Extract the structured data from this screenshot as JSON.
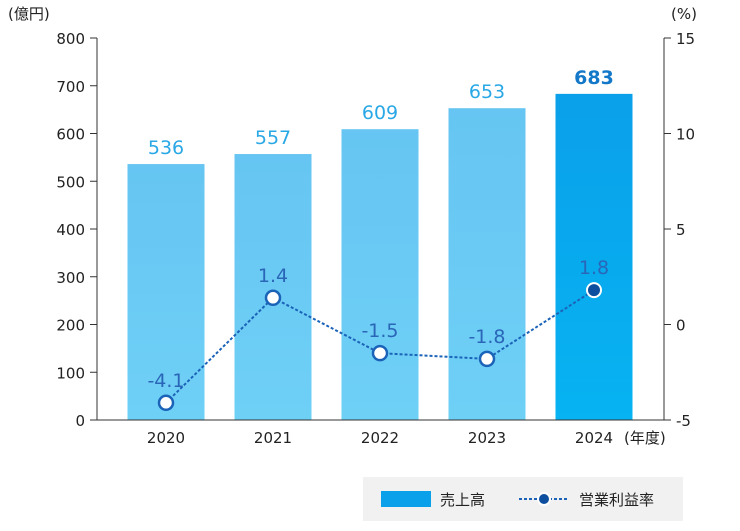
{
  "chart_data": {
    "type": "bar",
    "categories": [
      "2020",
      "2021",
      "2022",
      "2023",
      "2024"
    ],
    "x_suffix": "(年度)",
    "series": [
      {
        "name": "売上高",
        "type": "bar",
        "axis": "left",
        "values": [
          536,
          557,
          609,
          653,
          683
        ],
        "labels": [
          "536",
          "557",
          "609",
          "653",
          "683"
        ],
        "color": "#66c5f2",
        "highlight_color": "#0aa0ea"
      },
      {
        "name": "営業利益率",
        "type": "line",
        "axis": "right",
        "values": [
          -4.1,
          1.4,
          -1.5,
          -1.8,
          1.8
        ],
        "labels": [
          "-4.1",
          "1.4",
          "-1.5",
          "-1.8",
          "1.8"
        ],
        "color": "#1a63b8",
        "highlight_color": "#0d4f9e"
      }
    ],
    "y_left": {
      "unit": "(億円)",
      "range": [
        0,
        800
      ],
      "ticks": [
        "0",
        "100",
        "200",
        "300",
        "400",
        "500",
        "600",
        "700",
        "800"
      ]
    },
    "y_right": {
      "unit": "(%)",
      "range": [
        -5,
        15
      ],
      "ticks": [
        "-5",
        "0",
        "5",
        "10",
        "15"
      ]
    },
    "highlight_index": 4,
    "grid": false,
    "legend_position": "bottom-right"
  }
}
